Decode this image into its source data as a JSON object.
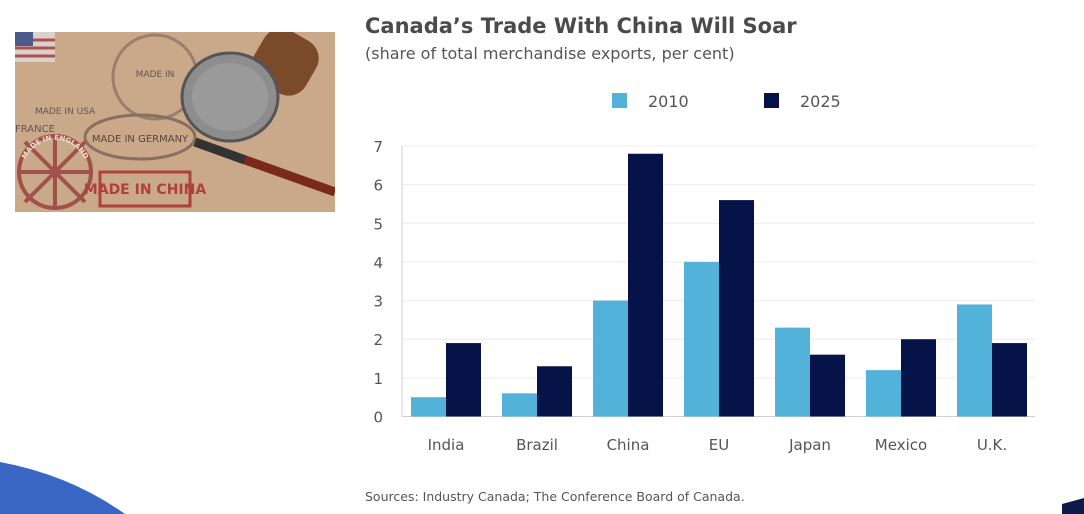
{
  "chart_data": {
    "type": "bar",
    "title": "Canada’s Trade With China Will Soar",
    "subtitle": "(share of total merchandise exports, per cent)",
    "categories": [
      "India",
      "Brazil",
      "China",
      "EU",
      "Japan",
      "Mexico",
      "U.K."
    ],
    "series": [
      {
        "name": "2010",
        "color": "#52b2da",
        "values": [
          0.5,
          0.6,
          3.0,
          4.0,
          2.3,
          1.2,
          2.9
        ]
      },
      {
        "name": "2025",
        "color": "#061348",
        "values": [
          1.9,
          1.3,
          6.8,
          5.6,
          1.6,
          2.0,
          1.9
        ]
      }
    ],
    "ylim": [
      0,
      7
    ],
    "yticks": [
      "0",
      "1",
      "2",
      "3",
      "4",
      "5",
      "6",
      "7"
    ],
    "grid": true,
    "legend_position": "top-center",
    "source": "Sources: Industry Canada; The Conference Board of Canada."
  },
  "photo": {
    "labels": [
      "MADE IN USA",
      "FRANCE",
      "MADE IN GERMANY",
      "MADE IN",
      "MADE IN CHINA",
      "MADE IN ENGLAND"
    ]
  }
}
